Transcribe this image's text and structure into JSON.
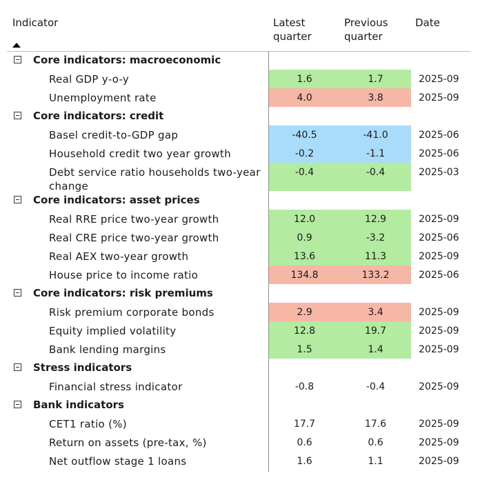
{
  "header": {
    "indicator": "Indicator",
    "latest": "Latest\nquarter",
    "previous": "Previous\nquarter",
    "date": "Date"
  },
  "colors": {
    "green": "#b3eba1",
    "red": "#f7b7a7",
    "blue": "#a9dcfb"
  },
  "groups": [
    {
      "label": "Core indicators: macroeconomic",
      "rows": [
        {
          "label": "Real GDP y-o-y",
          "latest": "1.6",
          "previous": "1.7",
          "date": "2025-09",
          "color": "green"
        },
        {
          "label": "Unemployment rate",
          "latest": "4.0",
          "previous": "3.8",
          "date": "2025-09",
          "color": "red"
        }
      ]
    },
    {
      "label": "Core indicators: credit",
      "rows": [
        {
          "label": "Basel credit-to-GDP gap",
          "latest": "-40.5",
          "previous": "-41.0",
          "date": "2025-06",
          "color": "blue"
        },
        {
          "label": "Household credit two year growth",
          "latest": "-0.2",
          "previous": "-1.1",
          "date": "2025-06",
          "color": "blue"
        },
        {
          "label": "Debt service ratio households two-year change",
          "latest": "-0.4",
          "previous": "-0.4",
          "date": "2025-03",
          "color": "green"
        }
      ]
    },
    {
      "label": "Core indicators: asset prices",
      "rows": [
        {
          "label": "Real RRE price two-year growth",
          "latest": "12.0",
          "previous": "12.9",
          "date": "2025-09",
          "color": "green"
        },
        {
          "label": "Real CRE price two-year growth",
          "latest": "0.9",
          "previous": "-3.2",
          "date": "2025-06",
          "color": "green"
        },
        {
          "label": "Real AEX two-year growth",
          "latest": "13.6",
          "previous": "11.3",
          "date": "2025-09",
          "color": "green"
        },
        {
          "label": "House price to income ratio",
          "latest": "134.8",
          "previous": "133.2",
          "date": "2025-06",
          "color": "red"
        }
      ]
    },
    {
      "label": "Core indicators: risk premiums",
      "rows": [
        {
          "label": "Risk premium corporate bonds",
          "latest": "2.9",
          "previous": "3.4",
          "date": "2025-09",
          "color": "red"
        },
        {
          "label": "Equity implied volatility",
          "latest": "12.8",
          "previous": "19.7",
          "date": "2025-09",
          "color": "green"
        },
        {
          "label": "Bank lending margins",
          "latest": "1.5",
          "previous": "1.4",
          "date": "2025-09",
          "color": "green"
        }
      ]
    },
    {
      "label": "Stress indicators",
      "rows": [
        {
          "label": "Financial stress indicator",
          "latest": "-0.8",
          "previous": "-0.4",
          "date": "2025-09",
          "color": ""
        }
      ]
    },
    {
      "label": "Bank indicators",
      "rows": [
        {
          "label": "CET1 ratio (%)",
          "latest": "17.7",
          "previous": "17.6",
          "date": "2025-09",
          "color": ""
        },
        {
          "label": "Return on assets (pre-tax, %)",
          "latest": "0.6",
          "previous": "0.6",
          "date": "2025-09",
          "color": ""
        },
        {
          "label": "Net outflow stage 1 loans",
          "latest": "1.6",
          "previous": "1.1",
          "date": "2025-09",
          "color": ""
        }
      ]
    }
  ]
}
